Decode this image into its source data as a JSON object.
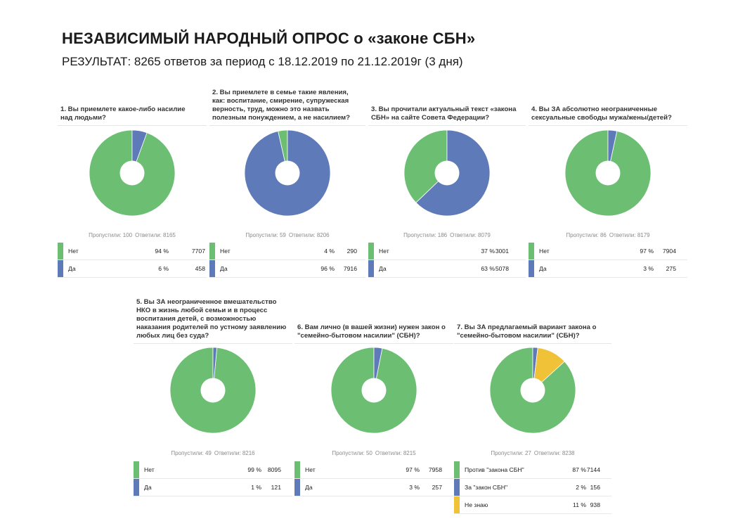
{
  "title": "НЕЗАВИСИМЫЙ НАРОДНЫЙ ОПРОС о «законе СБН»",
  "subtitle": "РЕЗУЛЬТАТ:  8265 ответов  за  период с 18.12.2019 по 21.12.2019г (3 дня)",
  "colors": {
    "net": "#6cbf72",
    "da": "#5f7ab8",
    "neznayu": "#efc237"
  },
  "chart_data": [
    {
      "type": "pie",
      "title": "1. Вы приемлете какое-либо насилие над людьми?",
      "skipped_label": "Пропустили: 100",
      "answered_label": "Ответили: 8165",
      "series": [
        {
          "name": "Нет",
          "percent_label": "94 %",
          "count": 7707,
          "color": "#6cbf72"
        },
        {
          "name": "Да",
          "percent_label": "6 %",
          "count": 458,
          "color": "#5f7ab8"
        }
      ]
    },
    {
      "type": "pie",
      "title": "2. Вы приемлете в семье такие явления, как: воспитание, смирение, супружеская верность, труд, можно это назвать полезным понуждением, а не насилием?",
      "skipped_label": "Пропустили: 59",
      "answered_label": "Ответили: 8206",
      "series": [
        {
          "name": "Нет",
          "percent_label": "4 %",
          "count": 290,
          "color": "#6cbf72"
        },
        {
          "name": "Да",
          "percent_label": "96 %",
          "count": 7916,
          "color": "#5f7ab8"
        }
      ]
    },
    {
      "type": "pie",
      "title": "3. Вы прочитали актуальный текст «закона СБН» на сайте Совета Федерации?",
      "skipped_label": "Пропустили: 186",
      "answered_label": "Ответили: 8079",
      "series": [
        {
          "name": "Нет",
          "percent_label": "37 %",
          "count": 3001,
          "color": "#6cbf72"
        },
        {
          "name": "Да",
          "percent_label": "63 %",
          "count": 5078,
          "color": "#5f7ab8"
        }
      ]
    },
    {
      "type": "pie",
      "title": "4. Вы ЗА абсолютно неограниченные сексуальные свободы мужа/жены/детей?",
      "skipped_label": "Пропустили: 86",
      "answered_label": "Ответили: 8179",
      "series": [
        {
          "name": "Нет",
          "percent_label": "97 %",
          "count": 7904,
          "color": "#6cbf72"
        },
        {
          "name": "Да",
          "percent_label": "3 %",
          "count": 275,
          "color": "#5f7ab8"
        }
      ]
    },
    {
      "type": "pie",
      "title": "5. Вы ЗА неограниченное вмешательство НКО в жизнь любой семьи и в процесс воспитания детей, с возможностью наказания родителей по устному заявлению любых лиц без суда?",
      "skipped_label": "Пропустили: 49",
      "answered_label": "Ответили: 8216",
      "series": [
        {
          "name": "Нет",
          "percent_label": "99 %",
          "count": 8095,
          "color": "#6cbf72"
        },
        {
          "name": "Да",
          "percent_label": "1 %",
          "count": 121,
          "color": "#5f7ab8"
        }
      ]
    },
    {
      "type": "pie",
      "title": "6. Вам лично (в вашей жизни) нужен закон о \"семейно-бытовом насилии\" (СБН)?",
      "skipped_label": "Пропустили: 50",
      "answered_label": "Ответили: 8215",
      "series": [
        {
          "name": "Нет",
          "percent_label": "97 %",
          "count": 7958,
          "color": "#6cbf72"
        },
        {
          "name": "Да",
          "percent_label": "3 %",
          "count": 257,
          "color": "#5f7ab8"
        }
      ]
    },
    {
      "type": "pie",
      "title": "7. Вы ЗА предлагаемый вариант закона о \"семейно-бытовом насилии\" (СБН)?",
      "skipped_label": "Пропустили: 27",
      "answered_label": "Ответили: 8238",
      "series": [
        {
          "name": "Против \"закона СБН\"",
          "percent_label": "87 %",
          "count": 7144,
          "color": "#6cbf72"
        },
        {
          "name": "За \"закон СБН\"",
          "percent_label": "2 %",
          "count": 156,
          "color": "#5f7ab8"
        },
        {
          "name": "Не знаю",
          "percent_label": "11 %",
          "count": 938,
          "color": "#efc237"
        }
      ]
    }
  ]
}
